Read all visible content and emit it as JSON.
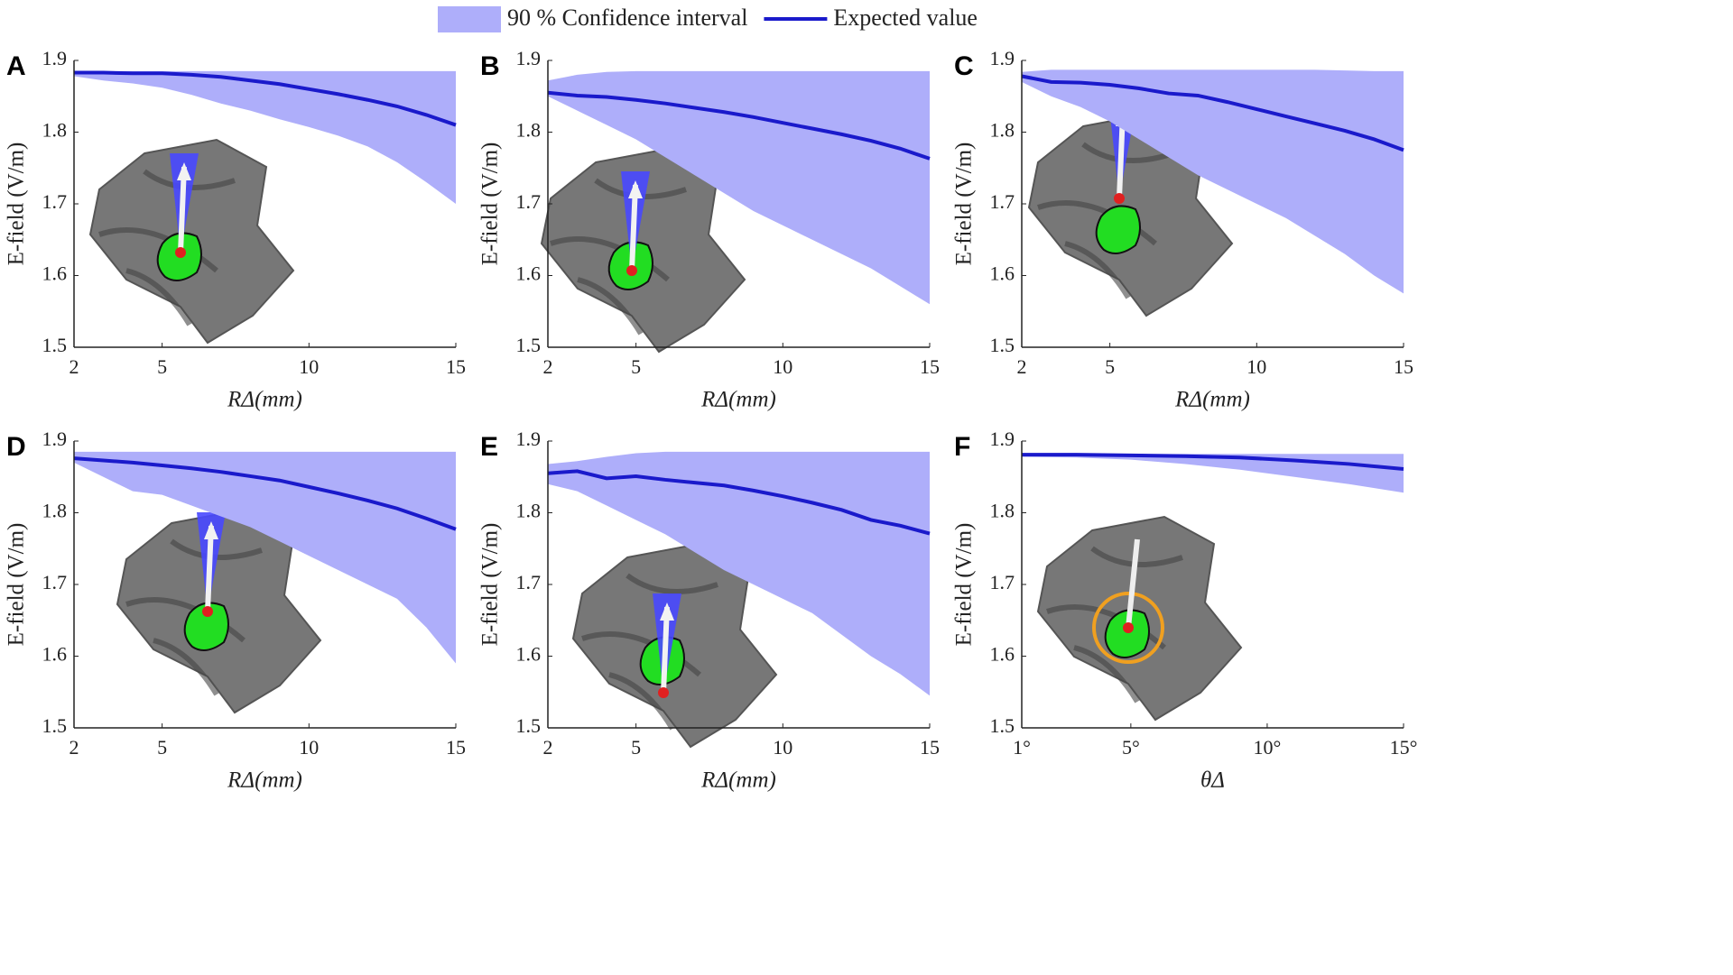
{
  "legend": [
    {
      "name": "90 % Confidence interval",
      "color": "#aeaefa",
      "kind": "band"
    },
    {
      "name": "Expected value",
      "color": "#1a1acb",
      "kind": "line"
    }
  ],
  "chart_data": [
    {
      "type": "line",
      "panel": "A",
      "ylabel": "E-field (V/m)",
      "xlabel": "RΔ(mm)",
      "xlim": [
        2,
        15
      ],
      "xticks": [
        2,
        5,
        10,
        15
      ],
      "ylim": [
        1.5,
        1.9
      ],
      "yticks": [
        1.5,
        1.6,
        1.7,
        1.8,
        1.9
      ],
      "x": [
        2,
        3,
        4,
        5,
        6,
        7,
        8,
        9,
        10,
        11,
        12,
        13,
        14,
        15
      ],
      "series": [
        {
          "kind": "band",
          "color": "#aeaefa",
          "lower": [
            1.878,
            1.872,
            1.868,
            1.862,
            1.852,
            1.84,
            1.83,
            1.818,
            1.807,
            1.795,
            1.78,
            1.758,
            1.73,
            1.7
          ],
          "upper": [
            1.885,
            1.885,
            1.885,
            1.885,
            1.885,
            1.885,
            1.885,
            1.885,
            1.885,
            1.885,
            1.885,
            1.885,
            1.885,
            1.885
          ]
        },
        {
          "kind": "line",
          "color": "#1a1acb",
          "values": [
            1.883,
            1.883,
            1.882,
            1.882,
            1.88,
            1.877,
            1.872,
            1.867,
            1.86,
            1.853,
            1.845,
            1.836,
            1.824,
            1.81
          ]
        }
      ]
    },
    {
      "type": "line",
      "panel": "B",
      "ylabel": "E-field (V/m)",
      "xlabel": "RΔ(mm)",
      "xlim": [
        2,
        15
      ],
      "xticks": [
        2,
        5,
        10,
        15
      ],
      "ylim": [
        1.5,
        1.9
      ],
      "yticks": [
        1.5,
        1.6,
        1.7,
        1.8,
        1.9
      ],
      "x": [
        2,
        3,
        4,
        5,
        6,
        7,
        8,
        9,
        10,
        11,
        12,
        13,
        14,
        15
      ],
      "series": [
        {
          "kind": "band",
          "color": "#aeaefa",
          "lower": [
            1.85,
            1.83,
            1.81,
            1.79,
            1.765,
            1.74,
            1.715,
            1.69,
            1.67,
            1.65,
            1.63,
            1.61,
            1.585,
            1.56
          ],
          "upper": [
            1.872,
            1.88,
            1.884,
            1.885,
            1.885,
            1.885,
            1.885,
            1.885,
            1.885,
            1.885,
            1.885,
            1.885,
            1.885,
            1.885
          ]
        },
        {
          "kind": "line",
          "color": "#1a1acb",
          "values": [
            1.855,
            1.851,
            1.849,
            1.845,
            1.84,
            1.834,
            1.828,
            1.821,
            1.813,
            1.805,
            1.797,
            1.788,
            1.777,
            1.763
          ]
        }
      ]
    },
    {
      "type": "line",
      "panel": "C",
      "ylabel": "E-field (V/m)",
      "xlabel": "RΔ(mm)",
      "xlim": [
        2,
        15
      ],
      "xticks": [
        2,
        5,
        10,
        15
      ],
      "ylim": [
        1.5,
        1.9
      ],
      "yticks": [
        1.5,
        1.6,
        1.7,
        1.8,
        1.9
      ],
      "x": [
        2,
        3,
        4,
        5,
        6,
        7,
        8,
        9,
        10,
        11,
        12,
        13,
        14,
        15
      ],
      "series": [
        {
          "kind": "band",
          "color": "#aeaefa",
          "lower": [
            1.87,
            1.85,
            1.835,
            1.815,
            1.79,
            1.765,
            1.74,
            1.72,
            1.7,
            1.68,
            1.655,
            1.63,
            1.6,
            1.575
          ],
          "upper": [
            1.884,
            1.887,
            1.887,
            1.887,
            1.887,
            1.887,
            1.887,
            1.887,
            1.887,
            1.887,
            1.887,
            1.886,
            1.885,
            1.885
          ]
        },
        {
          "kind": "line",
          "color": "#1a1acb",
          "values": [
            1.878,
            1.87,
            1.869,
            1.866,
            1.861,
            1.854,
            1.851,
            1.842,
            1.832,
            1.822,
            1.812,
            1.802,
            1.79,
            1.775
          ]
        }
      ]
    },
    {
      "type": "line",
      "panel": "D",
      "ylabel": "E-field (V/m)",
      "xlabel": "RΔ(mm)",
      "xlim": [
        2,
        15
      ],
      "xticks": [
        2,
        5,
        10,
        15
      ],
      "ylim": [
        1.5,
        1.9
      ],
      "yticks": [
        1.5,
        1.6,
        1.7,
        1.8,
        1.9
      ],
      "x": [
        2,
        3,
        4,
        5,
        6,
        7,
        8,
        9,
        10,
        11,
        12,
        13,
        14,
        15
      ],
      "series": [
        {
          "kind": "band",
          "color": "#aeaefa",
          "lower": [
            1.87,
            1.85,
            1.83,
            1.825,
            1.81,
            1.795,
            1.78,
            1.76,
            1.74,
            1.72,
            1.7,
            1.68,
            1.64,
            1.59
          ],
          "upper": [
            1.885,
            1.885,
            1.885,
            1.885,
            1.885,
            1.885,
            1.885,
            1.885,
            1.885,
            1.885,
            1.885,
            1.885,
            1.885,
            1.885
          ]
        },
        {
          "kind": "line",
          "color": "#1a1acb",
          "values": [
            1.876,
            1.873,
            1.87,
            1.866,
            1.862,
            1.857,
            1.851,
            1.845,
            1.836,
            1.827,
            1.817,
            1.806,
            1.792,
            1.777
          ]
        }
      ]
    },
    {
      "type": "line",
      "panel": "E",
      "ylabel": "E-field (V/m)",
      "xlabel": "RΔ(mm)",
      "xlim": [
        2,
        15
      ],
      "xticks": [
        2,
        5,
        10,
        15
      ],
      "ylim": [
        1.5,
        1.9
      ],
      "yticks": [
        1.5,
        1.6,
        1.7,
        1.8,
        1.9
      ],
      "x": [
        2,
        3,
        4,
        5,
        6,
        7,
        8,
        9,
        10,
        11,
        12,
        13,
        14,
        15
      ],
      "series": [
        {
          "kind": "band",
          "color": "#aeaefa",
          "lower": [
            1.84,
            1.83,
            1.81,
            1.79,
            1.77,
            1.745,
            1.72,
            1.7,
            1.68,
            1.66,
            1.63,
            1.6,
            1.575,
            1.545
          ],
          "upper": [
            1.868,
            1.872,
            1.878,
            1.883,
            1.885,
            1.885,
            1.885,
            1.885,
            1.885,
            1.885,
            1.885,
            1.885,
            1.885,
            1.885
          ]
        },
        {
          "kind": "line",
          "color": "#1a1acb",
          "values": [
            1.855,
            1.858,
            1.848,
            1.851,
            1.846,
            1.842,
            1.838,
            1.831,
            1.823,
            1.814,
            1.804,
            1.79,
            1.782,
            1.771
          ]
        }
      ]
    },
    {
      "type": "line",
      "panel": "F",
      "ylabel": "E-field (V/m)",
      "xlabel": "θΔ",
      "xlim": [
        1,
        15
      ],
      "xticks": [
        {
          "value": 1,
          "label": "1°"
        },
        {
          "value": 5,
          "label": "5°"
        },
        {
          "value": 10,
          "label": "10°"
        },
        {
          "value": 15,
          "label": "15°"
        }
      ],
      "ylim": [
        1.5,
        1.9
      ],
      "yticks": [
        1.5,
        1.6,
        1.7,
        1.8,
        1.9
      ],
      "x": [
        1,
        3,
        5,
        7,
        9,
        11,
        13,
        15
      ],
      "series": [
        {
          "kind": "band",
          "color": "#aeaefa",
          "lower": [
            1.878,
            1.877,
            1.874,
            1.868,
            1.86,
            1.85,
            1.84,
            1.828
          ],
          "upper": [
            1.882,
            1.882,
            1.882,
            1.882,
            1.882,
            1.882,
            1.882,
            1.882
          ]
        },
        {
          "kind": "line",
          "color": "#1a1acb",
          "values": [
            1.881,
            1.881,
            1.88,
            1.879,
            1.877,
            1.873,
            1.868,
            1.861
          ]
        }
      ]
    }
  ]
}
